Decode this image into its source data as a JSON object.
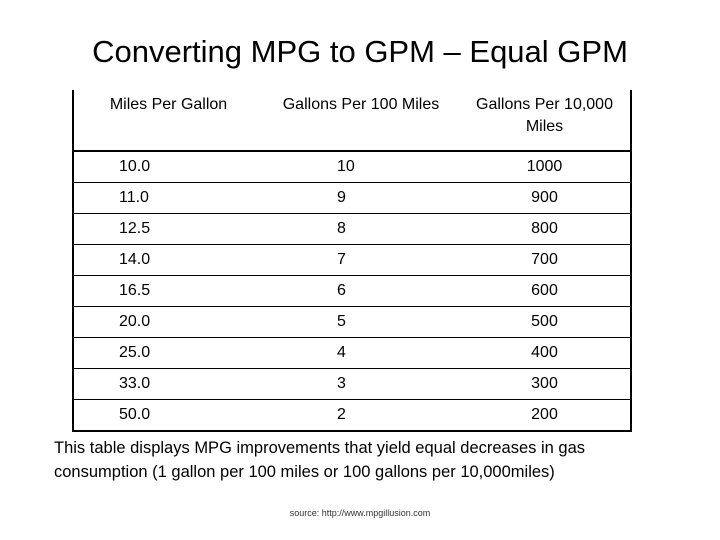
{
  "title": "Converting MPG to GPM – Equal GPM",
  "table": {
    "headers": [
      "Miles Per Gallon",
      "Gallons Per 100 Miles",
      "Gallons Per 10,000 Miles"
    ],
    "rows": [
      [
        "10.0",
        "10",
        "1000"
      ],
      [
        "11.0",
        "9",
        "900"
      ],
      [
        "12.5",
        "8",
        "800"
      ],
      [
        "14.0",
        "7",
        "700"
      ],
      [
        "16.5",
        "6",
        "600"
      ],
      [
        "20.0",
        "5",
        "500"
      ],
      [
        "25.0",
        "4",
        "400"
      ],
      [
        "33.0",
        "3",
        "300"
      ],
      [
        "50.0",
        "2",
        "200"
      ]
    ]
  },
  "caption": "This table displays MPG improvements that yield equal decreases in gas consumption (1 gallon per 100 miles or 100 gallons per 10,000miles)",
  "source": "source:  http://www.mpgillusion.com"
}
